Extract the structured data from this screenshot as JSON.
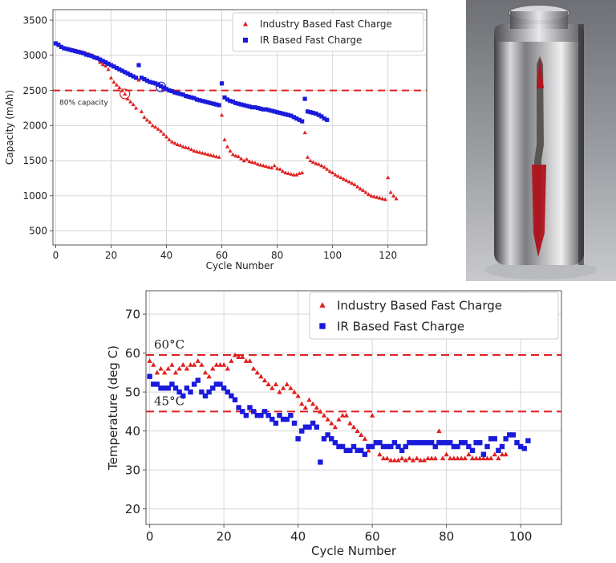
{
  "chart_data": [
    {
      "type": "scatter",
      "xlabel": "Cycle Number",
      "ylabel": "Capacity (mAh)",
      "xlim": [
        -1,
        134
      ],
      "ylim": [
        300,
        3650
      ],
      "xticks": [
        0,
        20,
        40,
        60,
        80,
        100,
        120
      ],
      "yticks": [
        500,
        1000,
        1500,
        2000,
        2500,
        3000,
        3500
      ],
      "grid": true,
      "legend": "top-right",
      "reference_lines": [
        {
          "y": 2500,
          "label": "80% capacity",
          "color": "#e02020",
          "style": "dashed"
        }
      ],
      "markers_circled": [
        {
          "series": "Industry Based Fast Charge",
          "x": 25,
          "y": 2450
        },
        {
          "series": "IR Based Fast Charge",
          "x": 38,
          "y": 2550
        }
      ],
      "series": [
        {
          "name": "Industry Based Fast Charge",
          "color": "#e02020",
          "marker": "triangle",
          "x": [
            0,
            1,
            2,
            3,
            4,
            5,
            6,
            7,
            8,
            9,
            10,
            11,
            12,
            13,
            14,
            15,
            16,
            17,
            18,
            19,
            20,
            21,
            22,
            23,
            24,
            25,
            26,
            27,
            28,
            29,
            30,
            31,
            32,
            33,
            34,
            35,
            36,
            37,
            38,
            39,
            40,
            41,
            42,
            43,
            44,
            45,
            46,
            47,
            48,
            49,
            50,
            51,
            52,
            53,
            54,
            55,
            56,
            57,
            58,
            59,
            60,
            61,
            62,
            63,
            64,
            65,
            66,
            67,
            68,
            69,
            70,
            71,
            72,
            73,
            74,
            75,
            76,
            77,
            78,
            79,
            80,
            81,
            82,
            83,
            84,
            85,
            86,
            87,
            88,
            89,
            90,
            91,
            92,
            93,
            94,
            95,
            96,
            97,
            98,
            99,
            100,
            101,
            102,
            103,
            104,
            105,
            106,
            107,
            108,
            109,
            110,
            111,
            112,
            113,
            114,
            115,
            116,
            117,
            118,
            119,
            120,
            121,
            122,
            123
          ],
          "y": [
            3170,
            3140,
            3120,
            3100,
            3090,
            3090,
            3080,
            3070,
            3060,
            3050,
            3040,
            3030,
            3020,
            3000,
            2980,
            2950,
            2900,
            2870,
            2850,
            2800,
            2680,
            2620,
            2580,
            2540,
            2500,
            2450,
            2380,
            2340,
            2300,
            2250,
            2650,
            2200,
            2120,
            2080,
            2050,
            2000,
            1980,
            1950,
            1920,
            1880,
            1840,
            1800,
            1770,
            1750,
            1730,
            1720,
            1700,
            1690,
            1680,
            1660,
            1640,
            1630,
            1620,
            1610,
            1600,
            1590,
            1580,
            1570,
            1560,
            1550,
            2150,
            1800,
            1700,
            1640,
            1590,
            1570,
            1560,
            1530,
            1500,
            1520,
            1490,
            1480,
            1470,
            1450,
            1440,
            1430,
            1420,
            1410,
            1400,
            1430,
            1390,
            1380,
            1350,
            1330,
            1320,
            1310,
            1300,
            1300,
            1320,
            1330,
            1900,
            1550,
            1500,
            1480,
            1460,
            1450,
            1430,
            1410,
            1380,
            1350,
            1330,
            1300,
            1280,
            1260,
            1240,
            1220,
            1200,
            1180,
            1160,
            1130,
            1100,
            1080,
            1050,
            1020,
            1000,
            990,
            980,
            970,
            960,
            950,
            1260,
            1050,
            1000,
            960
          ]
        },
        {
          "name": "IR Based Fast Charge",
          "color": "#1a1adc",
          "marker": "square",
          "x": [
            0,
            1,
            2,
            3,
            4,
            5,
            6,
            7,
            8,
            9,
            10,
            11,
            12,
            13,
            14,
            15,
            16,
            17,
            18,
            19,
            20,
            21,
            22,
            23,
            24,
            25,
            26,
            27,
            28,
            29,
            30,
            31,
            32,
            33,
            34,
            35,
            36,
            37,
            38,
            39,
            40,
            41,
            42,
            43,
            44,
            45,
            46,
            47,
            48,
            49,
            50,
            51,
            52,
            53,
            54,
            55,
            56,
            57,
            58,
            59,
            60,
            61,
            62,
            63,
            64,
            65,
            66,
            67,
            68,
            69,
            70,
            71,
            72,
            73,
            74,
            75,
            76,
            77,
            78,
            79,
            80,
            81,
            82,
            83,
            84,
            85,
            86,
            87,
            88,
            89,
            90,
            91,
            92,
            93,
            94,
            95,
            96,
            97,
            98
          ],
          "y": [
            3170,
            3150,
            3120,
            3100,
            3090,
            3080,
            3070,
            3060,
            3050,
            3040,
            3030,
            3010,
            3000,
            2990,
            2970,
            2960,
            2940,
            2920,
            2900,
            2880,
            2860,
            2840,
            2820,
            2800,
            2780,
            2760,
            2740,
            2720,
            2700,
            2680,
            2860,
            2680,
            2660,
            2640,
            2620,
            2610,
            2600,
            2580,
            2560,
            2540,
            2520,
            2500,
            2490,
            2470,
            2460,
            2450,
            2440,
            2420,
            2410,
            2400,
            2390,
            2370,
            2360,
            2350,
            2340,
            2330,
            2320,
            2310,
            2300,
            2290,
            2600,
            2400,
            2370,
            2350,
            2340,
            2320,
            2310,
            2300,
            2290,
            2280,
            2270,
            2260,
            2260,
            2250,
            2240,
            2230,
            2230,
            2220,
            2210,
            2200,
            2190,
            2180,
            2170,
            2160,
            2150,
            2140,
            2120,
            2100,
            2080,
            2060,
            2380,
            2200,
            2190,
            2180,
            2170,
            2150,
            2130,
            2100,
            2080
          ]
        }
      ]
    },
    {
      "type": "scatter",
      "xlabel": "Cycle Number",
      "ylabel": "Temperature (deg C)",
      "xlim": [
        -1,
        111
      ],
      "ylim": [
        16,
        76
      ],
      "xticks": [
        0,
        20,
        40,
        60,
        80,
        100
      ],
      "yticks": [
        20,
        30,
        40,
        50,
        60,
        70
      ],
      "grid": true,
      "legend": "top-right",
      "reference_lines": [
        {
          "y": 59.5,
          "label": "60°C",
          "color": "#e02020",
          "style": "dashed"
        },
        {
          "y": 45,
          "label": "45°C",
          "color": "#e02020",
          "style": "dashed"
        }
      ],
      "series": [
        {
          "name": "Industry Based Fast Charge",
          "color": "#e02020",
          "marker": "triangle",
          "x": [
            0,
            1,
            2,
            3,
            4,
            5,
            6,
            7,
            8,
            9,
            10,
            11,
            12,
            13,
            14,
            15,
            16,
            17,
            18,
            19,
            20,
            21,
            22,
            23,
            24,
            25,
            26,
            27,
            28,
            29,
            30,
            31,
            32,
            33,
            34,
            35,
            36,
            37,
            38,
            39,
            40,
            41,
            42,
            43,
            44,
            45,
            46,
            47,
            48,
            49,
            50,
            51,
            52,
            53,
            54,
            55,
            56,
            57,
            58,
            59,
            60,
            61,
            62,
            63,
            64,
            65,
            66,
            67,
            68,
            69,
            70,
            71,
            72,
            73,
            74,
            75,
            76,
            77,
            78,
            79,
            80,
            81,
            82,
            83,
            84,
            85,
            86,
            87,
            88,
            89,
            90,
            91,
            92,
            93,
            94,
            95,
            96
          ],
          "y": [
            58,
            57,
            55,
            56,
            55,
            56,
            57,
            55,
            56,
            57,
            56,
            57,
            57,
            58,
            57,
            55,
            54,
            56,
            57,
            57,
            57,
            56,
            58,
            59.5,
            59,
            59,
            58,
            58,
            56,
            55,
            54,
            53,
            52,
            51,
            52,
            50,
            51,
            52,
            51,
            50,
            49,
            47,
            46,
            48,
            47,
            46,
            45,
            44,
            43,
            42,
            41,
            43,
            44,
            44,
            42,
            41,
            40,
            39,
            38,
            35,
            44,
            37,
            34,
            33,
            33,
            32.5,
            32.5,
            32.5,
            33,
            32.5,
            33,
            32.5,
            33,
            32.5,
            32.5,
            33,
            33,
            33,
            40,
            33,
            34,
            33,
            33,
            33,
            33,
            33,
            34,
            33,
            33,
            33,
            33,
            33,
            33,
            34,
            33,
            34,
            34
          ]
        },
        {
          "name": "IR Based Fast Charge",
          "color": "#1a1adc",
          "marker": "square",
          "x": [
            0,
            1,
            2,
            3,
            4,
            5,
            6,
            7,
            8,
            9,
            10,
            11,
            12,
            13,
            14,
            15,
            16,
            17,
            18,
            19,
            20,
            21,
            22,
            23,
            24,
            25,
            26,
            27,
            28,
            29,
            30,
            31,
            32,
            33,
            34,
            35,
            36,
            37,
            38,
            39,
            40,
            41,
            42,
            43,
            44,
            45,
            46,
            47,
            48,
            49,
            50,
            51,
            52,
            53,
            54,
            55,
            56,
            57,
            58,
            59,
            60,
            61,
            62,
            63,
            64,
            65,
            66,
            67,
            68,
            69,
            70,
            71,
            72,
            73,
            74,
            75,
            76,
            77,
            78,
            79,
            80,
            81,
            82,
            83,
            84,
            85,
            86,
            87,
            88,
            89,
            90,
            91,
            92,
            93,
            94,
            95,
            96,
            97,
            98,
            99,
            100,
            101,
            102
          ],
          "y": [
            54,
            52,
            52,
            51,
            51,
            51,
            52,
            51,
            50,
            49,
            51,
            50,
            52,
            53,
            50,
            49,
            50,
            51,
            52,
            52,
            51,
            50,
            49,
            48,
            46,
            45,
            44,
            46,
            45,
            44,
            44,
            45,
            44,
            43,
            42,
            44,
            43,
            43,
            44,
            42,
            38,
            40,
            41,
            41,
            42,
            41,
            32,
            38,
            39,
            38,
            37,
            36,
            36,
            35,
            35,
            36,
            35,
            35,
            34,
            36,
            36,
            37,
            37,
            36,
            36,
            36,
            37,
            36,
            35,
            36,
            37,
            37,
            37,
            37,
            37,
            37,
            37,
            36,
            37,
            37,
            37,
            37,
            36,
            36,
            37,
            37,
            36,
            35,
            37,
            37,
            34,
            36,
            38,
            38,
            35,
            36,
            38,
            39,
            39,
            37,
            36,
            35.5,
            37.5
          ]
        }
      ]
    }
  ]
}
